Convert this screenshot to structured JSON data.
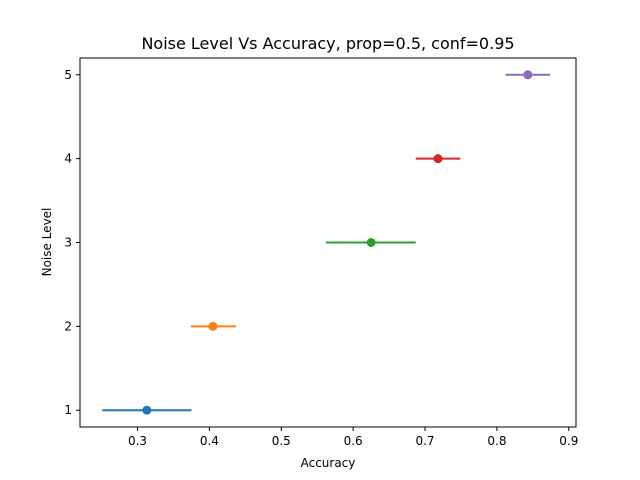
{
  "chart_data": {
    "type": "scatter",
    "title": "Noise Level Vs Accuracy, prop=0.5, conf=0.95",
    "xlabel": "Accuracy",
    "ylabel": "Noise Level",
    "xlim": [
      0.22,
      0.91
    ],
    "ylim": [
      0.8,
      5.2
    ],
    "xticks": [
      0.3,
      0.4,
      0.5,
      0.6,
      0.7,
      0.8,
      0.9
    ],
    "xtick_labels": [
      "0.3",
      "0.4",
      "0.5",
      "0.6",
      "0.7",
      "0.8",
      "0.9"
    ],
    "yticks": [
      1,
      2,
      3,
      4,
      5
    ],
    "ytick_labels": [
      "1",
      "2",
      "3",
      "4",
      "5"
    ],
    "grid": false,
    "points": [
      {
        "y": 1,
        "x": 0.313,
        "xerr_low": 0.251,
        "xerr_high": 0.375,
        "color": "#1f77b4"
      },
      {
        "y": 2,
        "x": 0.405,
        "xerr_low": 0.374,
        "xerr_high": 0.437,
        "color": "#ff7f0e"
      },
      {
        "y": 3,
        "x": 0.625,
        "xerr_low": 0.562,
        "xerr_high": 0.687,
        "color": "#2ca02c"
      },
      {
        "y": 4,
        "x": 0.718,
        "xerr_low": 0.687,
        "xerr_high": 0.749,
        "color": "#d62728"
      },
      {
        "y": 5,
        "x": 0.843,
        "xerr_low": 0.812,
        "xerr_high": 0.874,
        "color": "#9467bd"
      }
    ]
  }
}
